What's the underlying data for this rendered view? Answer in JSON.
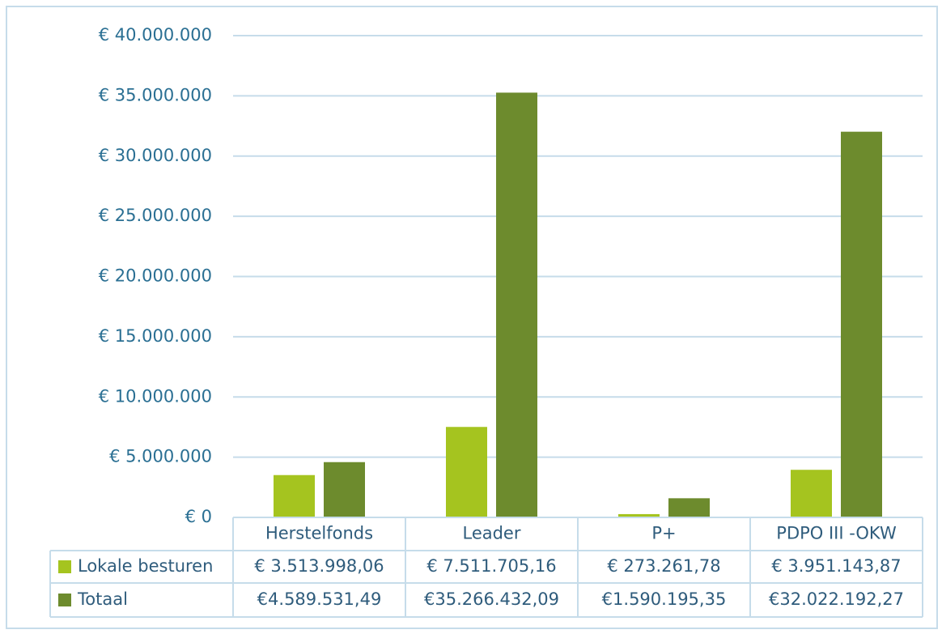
{
  "chart_data": {
    "type": "bar",
    "categories": [
      "Herstelfonds",
      "Leader",
      "P+",
      "PDPO III -OKW"
    ],
    "series": [
      {
        "name": "Lokale besturen",
        "color": "#a5c41f",
        "values": [
          3513998.06,
          7511705.16,
          273261.78,
          3951143.87
        ],
        "value_labels": [
          "€ 3.513.998,06",
          "€ 7.511.705,16",
          "€ 273.261,78",
          "€ 3.951.143,87"
        ]
      },
      {
        "name": "Totaal",
        "color": "#6d8b2d",
        "values": [
          4589531.49,
          35266432.09,
          1590195.35,
          32022192.27
        ],
        "value_labels": [
          "€4.589.531,49",
          "€35.266.432,09",
          "€1.590.195,35",
          "€32.022.192,27"
        ]
      }
    ],
    "ylim": [
      0,
      40000000
    ],
    "yticks": [
      {
        "value": 0,
        "label": "€ 0"
      },
      {
        "value": 5000000,
        "label": "€ 5.000.000"
      },
      {
        "value": 10000000,
        "label": "€ 10.000.000"
      },
      {
        "value": 15000000,
        "label": "€ 15.000.000"
      },
      {
        "value": 20000000,
        "label": "€ 20.000.000"
      },
      {
        "value": 25000000,
        "label": "€ 25.000.000"
      },
      {
        "value": 30000000,
        "label": "€ 30.000.000"
      },
      {
        "value": 35000000,
        "label": "€ 35.000.000"
      },
      {
        "value": 40000000,
        "label": "€ 40.000.000"
      }
    ],
    "grid": true
  }
}
